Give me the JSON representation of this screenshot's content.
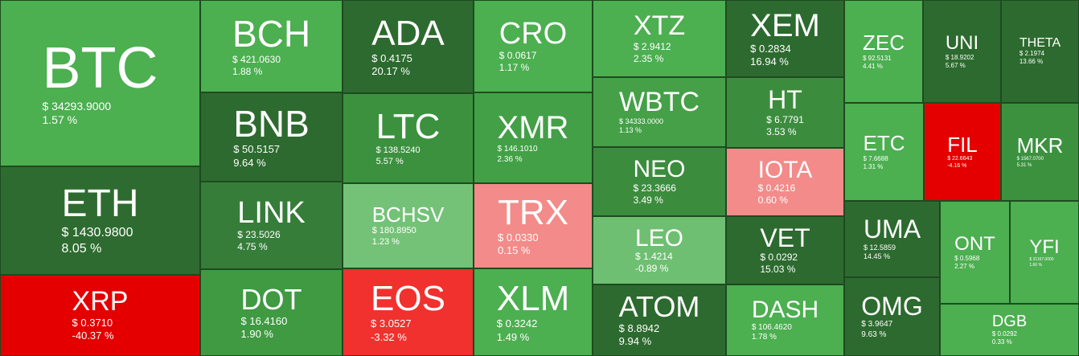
{
  "chart_data": {
    "type": "treemap",
    "tiles": [
      {
        "name": "BTC",
        "price": "$ 34293.9000",
        "change": "1.57 %",
        "color": "#4caf50"
      },
      {
        "name": "ETH",
        "price": "$ 1430.9800",
        "change": "8.05 %",
        "color": "#2e6b30"
      },
      {
        "name": "XRP",
        "price": "$ 0.3710",
        "change": "-40.37 %",
        "color": "#e50000"
      },
      {
        "name": "BCH",
        "price": "$ 421.0630",
        "change": "1.88 %",
        "color": "#4caf50"
      },
      {
        "name": "BNB",
        "price": "$ 50.5157",
        "change": "9.64 %",
        "color": "#2d6a2f"
      },
      {
        "name": "LINK",
        "price": "$ 23.5026",
        "change": "4.75 %",
        "color": "#367d39"
      },
      {
        "name": "DOT",
        "price": "$ 16.4160",
        "change": "1.90 %",
        "color": "#3f9a42"
      },
      {
        "name": "ADA",
        "price": "$ 0.4175",
        "change": "20.17 %",
        "color": "#2d6a2f"
      },
      {
        "name": "LTC",
        "price": "$ 138.5240",
        "change": "5.57 %",
        "color": "#3c913f"
      },
      {
        "name": "BCHSV",
        "price": "$ 180.8950",
        "change": "1.23 %",
        "color": "#74c277"
      },
      {
        "name": "EOS",
        "price": "$ 3.0527",
        "change": "-3.32 %",
        "color": "#f0312e"
      },
      {
        "name": "CRO",
        "price": "$ 0.0617",
        "change": "1.17 %",
        "color": "#4caf50"
      },
      {
        "name": "XMR",
        "price": "$ 146.1010",
        "change": "2.36 %",
        "color": "#43a047"
      },
      {
        "name": "TRX",
        "price": "$ 0.0330",
        "change": "0.15 %",
        "color": "#f28b89"
      },
      {
        "name": "XLM",
        "price": "$ 0.3242",
        "change": "1.49 %",
        "color": "#4caf50"
      },
      {
        "name": "XTZ",
        "price": "$ 2.9412",
        "change": "2.35 %",
        "color": "#4caf50"
      },
      {
        "name": "WBTC",
        "price": "$ 34333.0000",
        "change": "1.13 %",
        "color": "#45a048"
      },
      {
        "name": "NEO",
        "price": "$ 23.3666",
        "change": "3.49 %",
        "color": "#3c8c3e"
      },
      {
        "name": "LEO",
        "price": "$ 1.4214",
        "change": "-0.89 %",
        "color": "#6fbf72"
      },
      {
        "name": "ATOM",
        "price": "$ 8.8942",
        "change": "9.94 %",
        "color": "#2d6a2f"
      },
      {
        "name": "XEM",
        "price": "$ 0.2834",
        "change": "16.94 %",
        "color": "#2d6a2f"
      },
      {
        "name": "HT",
        "price": "$ 6.7791",
        "change": "3.53 %",
        "color": "#3c8c3e"
      },
      {
        "name": "IOTA",
        "price": "$ 0.4216",
        "change": "0.60 %",
        "color": "#f28b89"
      },
      {
        "name": "VET",
        "price": "$ 0.0292",
        "change": "15.03 %",
        "color": "#2d6a2f"
      },
      {
        "name": "DASH",
        "price": "$ 106.4620",
        "change": "1.78 %",
        "color": "#4caf50"
      },
      {
        "name": "ZEC",
        "price": "$ 92.5131",
        "change": "4.41 %",
        "color": "#4caf50"
      },
      {
        "name": "UNI",
        "price": "$ 18.9202",
        "change": "5.67 %",
        "color": "#2d6a2f"
      },
      {
        "name": "THETA",
        "price": "$ 2.1974",
        "change": "13.66 %",
        "color": "#2d6a2f"
      },
      {
        "name": "ETC",
        "price": "$ 7.6688",
        "change": "1.31 %",
        "color": "#4caf50"
      },
      {
        "name": "FIL",
        "price": "$ 22.6643",
        "change": "-4.16 %",
        "color": "#e50000"
      },
      {
        "name": "MKR",
        "price": "$ 1567.0700",
        "change": "5.31 %",
        "color": "#3c913f"
      },
      {
        "name": "UMA",
        "price": "$ 12.5859",
        "change": "14.45 %",
        "color": "#2d6a2f"
      },
      {
        "name": "OMG",
        "price": "$ 3.9647",
        "change": "9.63 %",
        "color": "#2d6a2f"
      },
      {
        "name": "ONT",
        "price": "$ 0.5968",
        "change": "2.27 %",
        "color": "#4caf50"
      },
      {
        "name": "YFI",
        "price": "$ 31167.0000",
        "change": "1.66 %",
        "color": "#4caf50"
      },
      {
        "name": "DGB",
        "price": "$ 0.0292",
        "change": "0.33 %",
        "color": "#4caf50"
      }
    ]
  }
}
